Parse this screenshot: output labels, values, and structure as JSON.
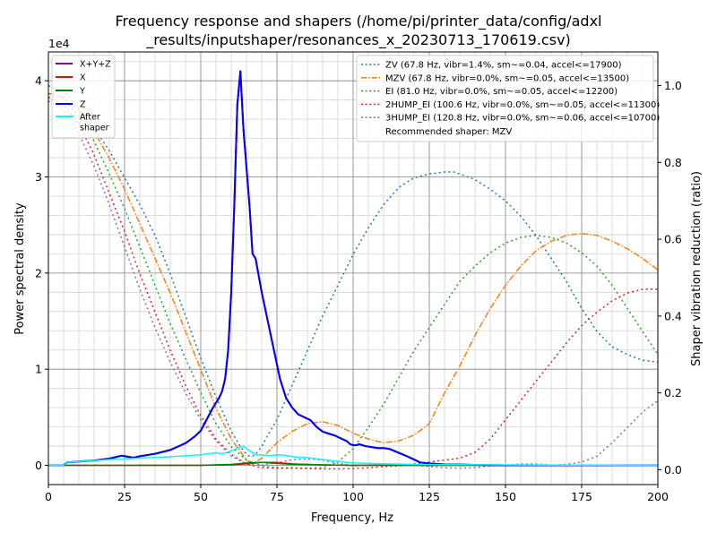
{
  "chart_data": {
    "type": "line",
    "title_lines": [
      "Frequency response and shapers (/home/pi/printer_data/config/adxl",
      "_results/inputshaper/resonances_x_20230713_170619.csv)"
    ],
    "xlabel": "Frequency, Hz",
    "ylabel": "Power spectral density",
    "y2label": "Shaper vibration reduction (ratio)",
    "y_offset_label": "1e4",
    "xlim": [
      0,
      200
    ],
    "ylim": [
      -2000,
      43000
    ],
    "y2lim": [
      -0.0387,
      1.0876
    ],
    "x_ticks": [
      0,
      25,
      50,
      75,
      100,
      125,
      150,
      175,
      200
    ],
    "x_tick_labels": [
      "0",
      "25",
      "50",
      "75",
      "100",
      "125",
      "150",
      "175",
      "200"
    ],
    "y_ticks": [
      0,
      10000,
      20000,
      30000,
      40000
    ],
    "y_tick_labels": [
      "0",
      "1",
      "2",
      "3",
      "4"
    ],
    "y2_ticks": [
      0.0,
      0.2,
      0.4,
      0.6,
      0.8,
      1.0
    ],
    "y2_tick_labels": [
      "0.0",
      "0.2",
      "0.4",
      "0.6",
      "0.8",
      "1.0"
    ],
    "grid": true,
    "psd_legend": {
      "placement": "top-left",
      "entries": [
        {
          "label": "X+Y+Z",
          "color": "#800080"
        },
        {
          "label": "X",
          "color": "#ff0000"
        },
        {
          "label": "Y",
          "color": "#008000"
        },
        {
          "label": "Z",
          "color": "#0000ff"
        },
        {
          "label": "After\nshaper",
          "color": "#00ffff"
        }
      ]
    },
    "shaper_legend": {
      "placement": "top-right",
      "entries": [
        {
          "label": "ZV (67.8 Hz, vibr=1.4%, sm~=0.04, accel<=17900)",
          "color": "#1f77b4",
          "dash": "dotted"
        },
        {
          "label": "MZV (67.8 Hz, vibr=0.0%, sm~=0.05, accel<=13500)",
          "color": "#ff7f0e",
          "dash": "dashdot"
        },
        {
          "label": "EI (81.0 Hz, vibr=0.0%, sm~=0.05, accel<=12200)",
          "color": "#2ca02c",
          "dash": "dotted"
        },
        {
          "label": "2HUMP_EI (100.6 Hz, vibr=0.0%, sm~=0.05, accel<=11300)",
          "color": "#d62728",
          "dash": "dotted"
        },
        {
          "label": "3HUMP_EI (120.8 Hz, vibr=0.0%, sm~=0.06, accel<=10700)",
          "color": "#9467bd",
          "dash": "dotted"
        }
      ],
      "note": "Recommended shaper: MZV"
    },
    "psd_series": [
      {
        "name": "X+Y+Z",
        "color": "#800080",
        "width": 2,
        "x": [
          0,
          5,
          6,
          10,
          15,
          20,
          22,
          24,
          26,
          28,
          30,
          35,
          40,
          45,
          48,
          50,
          52,
          54,
          56,
          57,
          58,
          59,
          60,
          61,
          62,
          63,
          64,
          65,
          66,
          67,
          68,
          70,
          72,
          74,
          76,
          78,
          80,
          82,
          84,
          86,
          88,
          90,
          92,
          94,
          96,
          98,
          99,
          100,
          101,
          102,
          103,
          104,
          106,
          108,
          110,
          112,
          115,
          118,
          120,
          122,
          125,
          130,
          140,
          150,
          200
        ],
        "y": [
          0,
          0,
          300,
          400,
          500,
          700,
          850,
          1000,
          900,
          800,
          950,
          1200,
          1600,
          2300,
          3000,
          3600,
          4800,
          6000,
          7000,
          7700,
          9000,
          12000,
          18000,
          27000,
          37500,
          41000,
          35000,
          31000,
          27000,
          22000,
          21500,
          18000,
          15000,
          12000,
          9000,
          7000,
          6000,
          5300,
          5000,
          4700,
          4000,
          3500,
          3300,
          3100,
          2800,
          2500,
          2200,
          2100,
          2100,
          2200,
          2100,
          2000,
          1900,
          1800,
          1800,
          1700,
          1300,
          900,
          600,
          300,
          200,
          100,
          50,
          0,
          0
        ],
        "shift": -5
      },
      {
        "name": "X",
        "color": "#ff0000",
        "width": 1.5,
        "x": [
          0,
          50,
          60,
          65,
          70,
          75,
          80,
          90,
          100,
          200
        ],
        "y": [
          0,
          0,
          50,
          150,
          300,
          300,
          150,
          50,
          0,
          0
        ]
      },
      {
        "name": "Y",
        "color": "#008000",
        "width": 1.5,
        "x": [
          0,
          5,
          50,
          60,
          65,
          70,
          75,
          80,
          85,
          90,
          100,
          200
        ],
        "y": [
          0,
          0,
          0,
          100,
          250,
          300,
          200,
          100,
          80,
          50,
          0,
          0
        ]
      },
      {
        "name": "Z",
        "color": "#0000ff",
        "width": 2,
        "x": [
          0,
          5,
          6,
          10,
          15,
          20,
          22,
          24,
          26,
          28,
          30,
          35,
          40,
          45,
          48,
          50,
          52,
          54,
          56,
          57,
          58,
          59,
          60,
          61,
          62,
          63,
          64,
          65,
          66,
          67,
          68,
          70,
          72,
          74,
          76,
          78,
          80,
          82,
          84,
          86,
          88,
          90,
          92,
          94,
          96,
          98,
          99,
          100,
          101,
          102,
          103,
          104,
          106,
          108,
          110,
          112,
          115,
          118,
          120,
          122,
          125,
          130,
          140,
          150,
          200
        ],
        "y": [
          0,
          0,
          300,
          400,
          500,
          700,
          850,
          1000,
          900,
          800,
          950,
          1200,
          1600,
          2300,
          3000,
          3600,
          4800,
          6000,
          7000,
          7700,
          9000,
          12000,
          18000,
          27000,
          37500,
          41000,
          35000,
          31000,
          27000,
          22000,
          21500,
          18000,
          15000,
          12000,
          9000,
          7000,
          6000,
          5300,
          5000,
          4700,
          4000,
          3500,
          3300,
          3100,
          2800,
          2500,
          2200,
          2100,
          2100,
          2200,
          2100,
          2000,
          1900,
          1800,
          1800,
          1700,
          1300,
          900,
          600,
          300,
          200,
          100,
          50,
          0,
          0
        ]
      },
      {
        "name": "After shaper",
        "color": "#00ffff",
        "width": 1.5,
        "x": [
          0,
          5,
          6,
          10,
          20,
          30,
          40,
          45,
          50,
          52,
          55,
          57,
          60,
          62,
          64,
          66,
          68,
          70,
          72,
          74,
          76,
          78,
          80,
          85,
          90,
          95,
          100,
          110,
          120,
          150,
          200
        ],
        "y": [
          0,
          0,
          300,
          400,
          600,
          750,
          900,
          1000,
          1100,
          1200,
          1300,
          1200,
          1500,
          1800,
          2000,
          1500,
          1100,
          1100,
          1000,
          1050,
          1100,
          1000,
          900,
          800,
          600,
          400,
          250,
          150,
          100,
          50,
          0
        ]
      }
    ],
    "shaper_series": [
      {
        "name": "ZV",
        "color": "#1f77b4",
        "dash": "2,3.3",
        "width": 1.5,
        "x": [
          0,
          5,
          10,
          15,
          20,
          25,
          30,
          35,
          40,
          45,
          50,
          55,
          60,
          63,
          65,
          66,
          67,
          68,
          70,
          72,
          75,
          80,
          85,
          90,
          95,
          100,
          105,
          110,
          115,
          120,
          125,
          130,
          133,
          135,
          140,
          145,
          150,
          155,
          160,
          165,
          170,
          175,
          180,
          185,
          190,
          195,
          200
        ],
        "y": [
          1.0,
          0.985,
          0.94,
          0.89,
          0.83,
          0.76,
          0.69,
          0.61,
          0.51,
          0.4,
          0.29,
          0.19,
          0.1,
          0.06,
          0.04,
          0.035,
          0.035,
          0.04,
          0.06,
          0.09,
          0.13,
          0.22,
          0.31,
          0.4,
          0.48,
          0.56,
          0.63,
          0.69,
          0.735,
          0.76,
          0.77,
          0.775,
          0.775,
          0.77,
          0.755,
          0.73,
          0.7,
          0.66,
          0.61,
          0.55,
          0.49,
          0.42,
          0.36,
          0.32,
          0.3,
          0.285,
          0.28
        ]
      },
      {
        "name": "MZV",
        "color": "#ff7f0e",
        "dash": "7,2,1.5,2",
        "width": 1.5,
        "x": [
          0,
          5,
          10,
          15,
          20,
          25,
          30,
          35,
          40,
          45,
          50,
          55,
          60,
          65,
          66,
          68,
          70,
          75,
          80,
          85,
          90,
          95,
          100,
          105,
          110,
          115,
          120,
          125,
          130,
          135,
          140,
          145,
          150,
          155,
          160,
          165,
          170,
          175,
          180,
          185,
          190,
          195,
          200
        ],
        "y": [
          0.98,
          0.97,
          0.935,
          0.88,
          0.81,
          0.73,
          0.64,
          0.55,
          0.46,
          0.36,
          0.26,
          0.16,
          0.08,
          0.025,
          0.02,
          0.02,
          0.03,
          0.07,
          0.1,
          0.12,
          0.125,
          0.115,
          0.095,
          0.08,
          0.07,
          0.075,
          0.09,
          0.12,
          0.2,
          0.27,
          0.35,
          0.42,
          0.48,
          0.53,
          0.57,
          0.595,
          0.61,
          0.615,
          0.61,
          0.595,
          0.575,
          0.55,
          0.52
        ]
      },
      {
        "name": "EI",
        "color": "#2ca02c",
        "dash": "2,3.3",
        "width": 1.5,
        "x": [
          0,
          5,
          10,
          15,
          20,
          25,
          30,
          35,
          40,
          45,
          50,
          55,
          60,
          65,
          70,
          75,
          80,
          85,
          90,
          95,
          100,
          105,
          110,
          115,
          120,
          125,
          130,
          135,
          140,
          145,
          150,
          155,
          160,
          165,
          170,
          175,
          180,
          185,
          190,
          195,
          200
        ],
        "y": [
          0.98,
          0.965,
          0.92,
          0.855,
          0.77,
          0.68,
          0.58,
          0.48,
          0.38,
          0.29,
          0.2,
          0.12,
          0.06,
          0.025,
          0.01,
          0.005,
          0.005,
          0.004,
          0.005,
          0.02,
          0.055,
          0.11,
          0.17,
          0.24,
          0.31,
          0.37,
          0.43,
          0.49,
          0.53,
          0.565,
          0.59,
          0.605,
          0.61,
          0.605,
          0.59,
          0.565,
          0.53,
          0.48,
          0.42,
          0.36,
          0.3
        ]
      },
      {
        "name": "2HUMP_EI",
        "color": "#d62728",
        "dash": "2,3.3",
        "width": 1.5,
        "x": [
          0,
          5,
          10,
          15,
          20,
          25,
          30,
          35,
          40,
          45,
          50,
          55,
          60,
          65,
          70,
          75,
          80,
          85,
          90,
          95,
          100,
          105,
          110,
          115,
          120,
          125,
          130,
          135,
          140,
          145,
          150,
          155,
          160,
          165,
          170,
          175,
          180,
          185,
          190,
          195,
          200
        ],
        "y": [
          0.97,
          0.95,
          0.9,
          0.82,
          0.72,
          0.62,
          0.51,
          0.41,
          0.31,
          0.22,
          0.14,
          0.08,
          0.04,
          0.015,
          0.005,
          0.004,
          0.004,
          0.003,
          0.002,
          0.002,
          0.003,
          0.005,
          0.008,
          0.01,
          0.015,
          0.02,
          0.025,
          0.03,
          0.045,
          0.08,
          0.13,
          0.18,
          0.23,
          0.28,
          0.33,
          0.375,
          0.41,
          0.44,
          0.46,
          0.47,
          0.47
        ]
      },
      {
        "name": "3HUMP_EI",
        "color": "#9467bd",
        "dash": "2,3.3",
        "width": 1.5,
        "x": [
          0,
          5,
          10,
          15,
          20,
          25,
          30,
          35,
          40,
          45,
          50,
          55,
          60,
          65,
          70,
          75,
          80,
          85,
          90,
          95,
          100,
          105,
          110,
          115,
          120,
          125,
          130,
          135,
          140,
          145,
          150,
          155,
          160,
          165,
          170,
          175,
          180,
          185,
          190,
          195,
          200
        ],
        "y": [
          0.96,
          0.935,
          0.875,
          0.79,
          0.69,
          0.58,
          0.47,
          0.37,
          0.28,
          0.2,
          0.13,
          0.075,
          0.035,
          0.015,
          0.012,
          0.018,
          0.026,
          0.028,
          0.025,
          0.017,
          0.01,
          0.012,
          0.015,
          0.015,
          0.012,
          0.008,
          0.005,
          0.004,
          0.005,
          0.01,
          0.012,
          0.015,
          0.015,
          0.012,
          0.014,
          0.02,
          0.035,
          0.07,
          0.11,
          0.15,
          0.18
        ]
      }
    ]
  }
}
